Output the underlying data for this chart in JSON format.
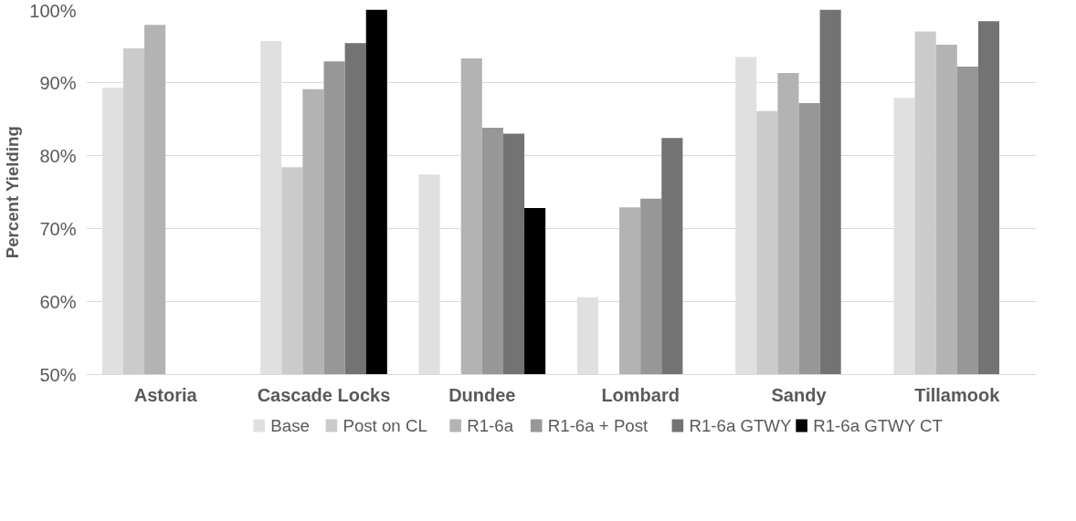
{
  "chart_data": {
    "type": "bar",
    "ylabel": "Percent Yielding",
    "categories": [
      "Astoria",
      "Cascade Locks",
      "Dundee",
      "Lombard",
      "Sandy",
      "Tillamook"
    ],
    "series": [
      {
        "name": "Base",
        "color": "#e0e0e0",
        "values": [
          89.3,
          95.7,
          77.4,
          60.6,
          93.5,
          87.9
        ]
      },
      {
        "name": "Post on CL",
        "color": "#cbcbcb",
        "values": [
          94.7,
          78.4,
          null,
          null,
          86.1,
          97.0
        ]
      },
      {
        "name": "R1-6a",
        "color": "#b3b3b3",
        "values": [
          97.9,
          89.1,
          93.3,
          72.9,
          91.3,
          95.2
        ]
      },
      {
        "name": "R1-6a + Post",
        "color": "#979797",
        "values": [
          null,
          92.9,
          83.8,
          74.1,
          87.2,
          92.2
        ]
      },
      {
        "name": "R1-6a GTWY",
        "color": "#737373",
        "values": [
          null,
          95.4,
          83.0,
          82.4,
          100,
          98.4
        ]
      },
      {
        "name": "R1-6a GTWY CT",
        "color": "#000000",
        "values": [
          null,
          100,
          72.8,
          null,
          null,
          null
        ]
      }
    ],
    "ylim": [
      50,
      100
    ],
    "yticks": [
      {
        "value": 50,
        "label": "50%"
      },
      {
        "value": 60,
        "label": "60%"
      },
      {
        "value": 70,
        "label": "70%"
      },
      {
        "value": 80,
        "label": "80%"
      },
      {
        "value": 90,
        "label": "90%"
      },
      {
        "value": 100,
        "label": "100%"
      }
    ],
    "grid": "y",
    "legend": "bottom"
  }
}
